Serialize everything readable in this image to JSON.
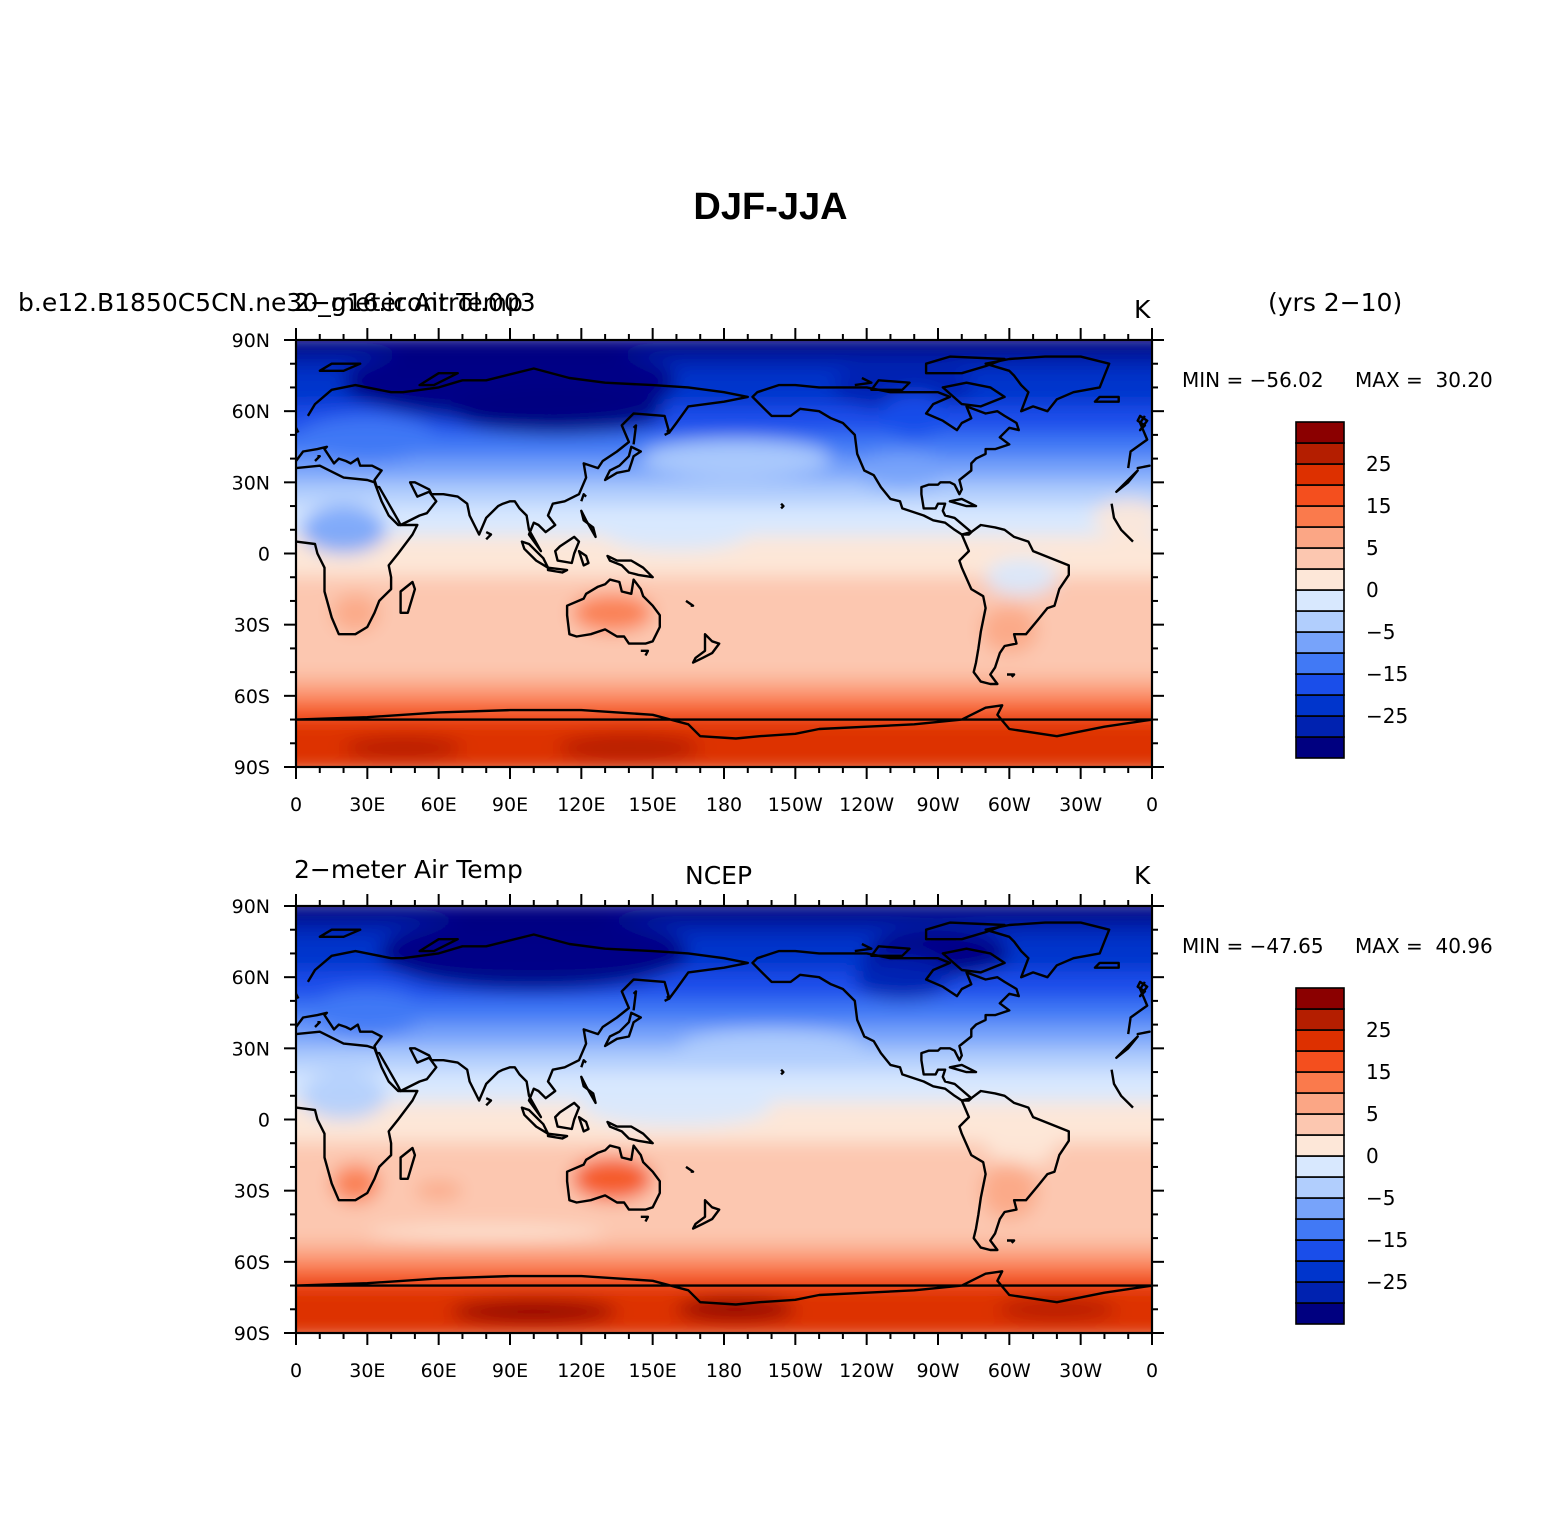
{
  "title": "DJF-JJA",
  "palette": [
    "#000080",
    "#0022b0",
    "#0035cc",
    "#1a4eea",
    "#4179f5",
    "#77a3fa",
    "#b1cefd",
    "#d8e8fe",
    "#fde7d8",
    "#fcc7b0",
    "#fba685",
    "#fa7a4c",
    "#f44f1e",
    "#dd3000",
    "#b41e00",
    "#8b0000"
  ],
  "xticks": [
    "0",
    "30E",
    "60E",
    "90E",
    "120E",
    "150E",
    "180",
    "150W",
    "120W",
    "90W",
    "60W",
    "30W",
    "0"
  ],
  "yticks": [
    "90N",
    "60N",
    "30N",
    "0",
    "30S",
    "60S",
    "90S"
  ],
  "colorbar_labels": [
    "25",
    "15",
    "5",
    "0",
    "−5",
    "−15",
    "−25"
  ],
  "panels": [
    {
      "left_title": "b.e12.B1850C5CN.ne30_g16.icontrol.003",
      "overlay_title": "2−meter Air Temp",
      "center_title": "",
      "units": "K",
      "years": "(yrs 2−10)",
      "min_label": "MIN = −56.02",
      "max_label": "MAX =  30.20"
    },
    {
      "left_title": "2−meter Air Temp",
      "overlay_title": "",
      "center_title": "NCEP",
      "units": "K",
      "years": "",
      "min_label": "MIN = −47.65",
      "max_label": "MAX =  40.96"
    }
  ]
}
